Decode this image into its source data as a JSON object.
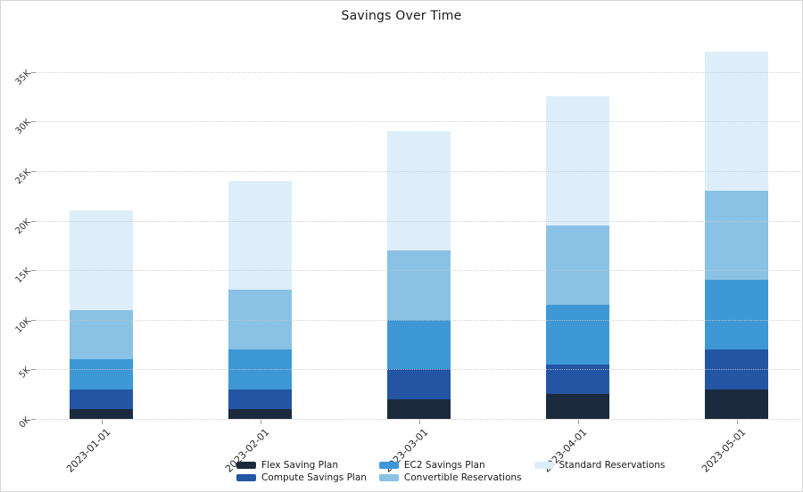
{
  "title": "Savings Over Time",
  "chart_data": {
    "type": "bar",
    "stacked": true,
    "title": "Savings Over Time",
    "categories": [
      "2023-01-01",
      "2023-02-01",
      "2023-03-01",
      "2023-04-01",
      "2023-05-01"
    ],
    "series": [
      {
        "name": "Flex Saving Plan",
        "color": "#1b2a3d",
        "values": [
          1000,
          1000,
          2000,
          2500,
          3000
        ]
      },
      {
        "name": "Compute Savings Plan",
        "color": "#2355a4",
        "values": [
          2000,
          2000,
          3000,
          3000,
          4000
        ]
      },
      {
        "name": "EC2 Savings Plan",
        "color": "#3f98d6",
        "values": [
          3000,
          4000,
          5000,
          6000,
          7000
        ]
      },
      {
        "name": "Convertible Reservations",
        "color": "#89c2e4",
        "values": [
          5000,
          6000,
          7000,
          8000,
          9000
        ]
      },
      {
        "name": "Standard Reservations",
        "color": "#ddeefa",
        "values": [
          10000,
          11000,
          12000,
          13000,
          14000
        ]
      }
    ],
    "yticks": {
      "values": [
        0,
        5000,
        10000,
        15000,
        20000,
        25000,
        30000,
        35000
      ],
      "labels": [
        "0K",
        "5K",
        "10K",
        "15K",
        "20K",
        "25K",
        "30K",
        "35K"
      ]
    },
    "ylim": [
      0,
      38000
    ],
    "xlabel": "",
    "ylabel": "",
    "grid": "horizontal-dotted",
    "legend_position": "bottom-center",
    "x_tick_rotation": 45,
    "y_tick_rotation": 45
  },
  "colors": {
    "background": "#ffffff",
    "frame_border": "#d6d6d6",
    "gridline": "#c7c7c7",
    "tick_text": "#333333",
    "title_text": "#15191e"
  }
}
